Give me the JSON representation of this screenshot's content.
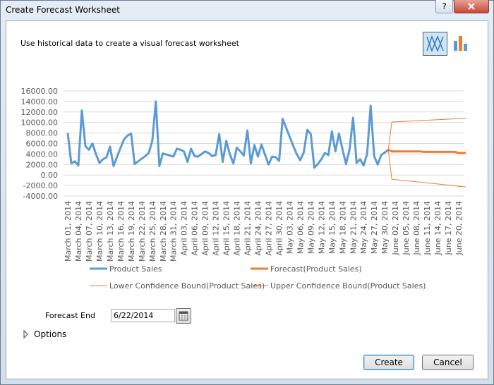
{
  "window": {
    "title": "Create Forecast Worksheet",
    "help": "?"
  },
  "description": "Use historical data to create a visual forecast worksheet",
  "form": {
    "forecast_end_label": "Forecast End",
    "forecast_end_value": "6/22/2014",
    "options": "Options"
  },
  "buttons": {
    "create": "Create",
    "cancel": "Cancel"
  },
  "chart_data": {
    "type": "line",
    "categories": [
      "March 01, 2014",
      null,
      null,
      "March 04, 2014",
      null,
      null,
      "March 07, 2014",
      null,
      null,
      "March 10, 2014",
      null,
      null,
      "March 13, 2014",
      null,
      null,
      "March 16, 2014",
      null,
      null,
      "March 19, 2014",
      null,
      null,
      "March 22, 2014",
      null,
      null,
      "March 25, 2014",
      null,
      null,
      "March 28, 2014",
      null,
      null,
      "March 31, 2014",
      null,
      null,
      "April 03, 2014",
      null,
      null,
      "April 06, 2014",
      null,
      null,
      "April 09, 2014",
      null,
      null,
      "April 12, 2014",
      null,
      null,
      "April 15, 2014",
      null,
      null,
      "April 18, 2014",
      null,
      null,
      "April 21, 2014",
      null,
      null,
      "April 24, 2014",
      null,
      null,
      "April 27, 2014",
      null,
      null,
      "April 30, 2014",
      null,
      null,
      "May 03, 2014",
      null,
      null,
      "May 06, 2014",
      null,
      null,
      "May 09, 2014",
      null,
      null,
      "May 12, 2014",
      null,
      null,
      "May 15, 2014",
      null,
      null,
      "May 18, 2014",
      null,
      null,
      "May 21, 2014",
      null,
      null,
      "May 24, 2014",
      null,
      null,
      "May 27, 2014",
      null,
      null,
      "May 30, 2014",
      null,
      null,
      "June 02, 2014",
      null,
      null,
      "June 05, 2014",
      null,
      null,
      "June 08, 2014",
      null,
      null,
      "June 11, 2014",
      null,
      null,
      "June 14, 2014",
      null,
      null,
      "June 17, 2014",
      null,
      null,
      "June 20, 2014",
      null,
      null
    ],
    "series": [
      {
        "name": "Product Sales",
        "color": "#5b9bd5",
        "width": 3,
        "values": [
          8000,
          2200,
          2600,
          1800,
          12300,
          5500,
          4800,
          6000,
          4000,
          2300,
          3000,
          3400,
          5400,
          1700,
          3500,
          5200,
          6800,
          7500,
          7900,
          2100,
          2600,
          3100,
          3600,
          4200,
          6500,
          14000,
          1700,
          4100,
          3900,
          3700,
          3500,
          5000,
          4800,
          4500,
          2500,
          5000,
          3600,
          3500,
          4000,
          4500,
          4200,
          3600,
          3800,
          7800,
          2500,
          6500,
          4000,
          2200,
          5200,
          4500,
          3700,
          8500,
          2200,
          5700,
          3500,
          5800,
          3900,
          2000,
          3500,
          3400,
          2700,
          10700,
          9000,
          7300,
          5600,
          4000,
          2800,
          4300,
          8600,
          7800,
          1400,
          2100,
          3000,
          4200,
          3800,
          8300,
          4500,
          7900,
          4900,
          2100,
          4800,
          10900,
          2300,
          3000,
          1800,
          4000,
          13200,
          3600,
          2000,
          3800,
          4300,
          4800,
          null,
          null,
          null,
          null,
          null,
          null,
          null,
          null,
          null,
          null,
          null,
          null,
          null,
          null,
          null,
          null,
          null,
          null,
          null,
          null,
          null,
          null
        ]
      },
      {
        "name": "Forecast(Product Sales)",
        "color": "#ed7d31",
        "width": 3,
        "values": [
          null,
          null,
          null,
          null,
          null,
          null,
          null,
          null,
          null,
          null,
          null,
          null,
          null,
          null,
          null,
          null,
          null,
          null,
          null,
          null,
          null,
          null,
          null,
          null,
          null,
          null,
          null,
          null,
          null,
          null,
          null,
          null,
          null,
          null,
          null,
          null,
          null,
          null,
          null,
          null,
          null,
          null,
          null,
          null,
          null,
          null,
          null,
          null,
          null,
          null,
          null,
          null,
          null,
          null,
          null,
          null,
          null,
          null,
          null,
          null,
          null,
          null,
          null,
          null,
          null,
          null,
          null,
          null,
          null,
          null,
          null,
          null,
          null,
          null,
          null,
          null,
          null,
          null,
          null,
          null,
          null,
          null,
          null,
          null,
          null,
          null,
          null,
          null,
          null,
          null,
          null,
          4800,
          4500,
          4500,
          4500,
          4500,
          4500,
          4500,
          4500,
          4500,
          4500,
          4400,
          4400,
          4400,
          4400,
          4400,
          4400,
          4400,
          4400,
          4400,
          4400,
          4200,
          4200,
          4200
        ]
      },
      {
        "name": "Lower Confidence Bound(Product Sales)",
        "color": "#ed7d31",
        "width": 1,
        "values": [
          null,
          null,
          null,
          null,
          null,
          null,
          null,
          null,
          null,
          null,
          null,
          null,
          null,
          null,
          null,
          null,
          null,
          null,
          null,
          null,
          null,
          null,
          null,
          null,
          null,
          null,
          null,
          null,
          null,
          null,
          null,
          null,
          null,
          null,
          null,
          null,
          null,
          null,
          null,
          null,
          null,
          null,
          null,
          null,
          null,
          null,
          null,
          null,
          null,
          null,
          null,
          null,
          null,
          null,
          null,
          null,
          null,
          null,
          null,
          null,
          null,
          null,
          null,
          null,
          null,
          null,
          null,
          null,
          null,
          null,
          null,
          null,
          null,
          null,
          null,
          null,
          null,
          null,
          null,
          null,
          null,
          null,
          null,
          null,
          null,
          null,
          null,
          null,
          null,
          null,
          null,
          4800,
          -800,
          -870,
          -940,
          -1010,
          -1080,
          -1150,
          -1220,
          -1290,
          -1360,
          -1430,
          -1500,
          -1570,
          -1640,
          -1710,
          -1780,
          -1850,
          -1920,
          -1990,
          -2060,
          -2130,
          -2200,
          -2270
        ]
      },
      {
        "name": "Upper Confidence Bound(Product Sales)",
        "color": "#ed7d31",
        "width": 1,
        "values": [
          null,
          null,
          null,
          null,
          null,
          null,
          null,
          null,
          null,
          null,
          null,
          null,
          null,
          null,
          null,
          null,
          null,
          null,
          null,
          null,
          null,
          null,
          null,
          null,
          null,
          null,
          null,
          null,
          null,
          null,
          null,
          null,
          null,
          null,
          null,
          null,
          null,
          null,
          null,
          null,
          null,
          null,
          null,
          null,
          null,
          null,
          null,
          null,
          null,
          null,
          null,
          null,
          null,
          null,
          null,
          null,
          null,
          null,
          null,
          null,
          null,
          null,
          null,
          null,
          null,
          null,
          null,
          null,
          null,
          null,
          null,
          null,
          null,
          null,
          null,
          null,
          null,
          null,
          null,
          null,
          null,
          null,
          null,
          null,
          null,
          null,
          null,
          null,
          null,
          null,
          null,
          4800,
          10100,
          10130,
          10160,
          10200,
          10230,
          10260,
          10300,
          10330,
          10360,
          10400,
          10430,
          10460,
          10500,
          10530,
          10560,
          10600,
          10630,
          10660,
          10700,
          10730,
          10760,
          10800
        ]
      }
    ],
    "ylim": [
      -4000,
      16000
    ],
    "yticks": [
      {
        "value": -4000,
        "label": "-4000.00"
      },
      {
        "value": -2000,
        "label": "-2000.00"
      },
      {
        "value": 0,
        "label": "0.00"
      },
      {
        "value": 2000,
        "label": "2000.00"
      },
      {
        "value": 4000,
        "label": "4000.00"
      },
      {
        "value": 6000,
        "label": "6000.00"
      },
      {
        "value": 8000,
        "label": "8000.00"
      },
      {
        "value": 10000,
        "label": "10000.00"
      },
      {
        "value": 12000,
        "label": "12000.00"
      },
      {
        "value": 14000,
        "label": "14000.00"
      },
      {
        "value": 16000,
        "label": "16000.00"
      }
    ],
    "grid": true,
    "legend": "bottom"
  }
}
